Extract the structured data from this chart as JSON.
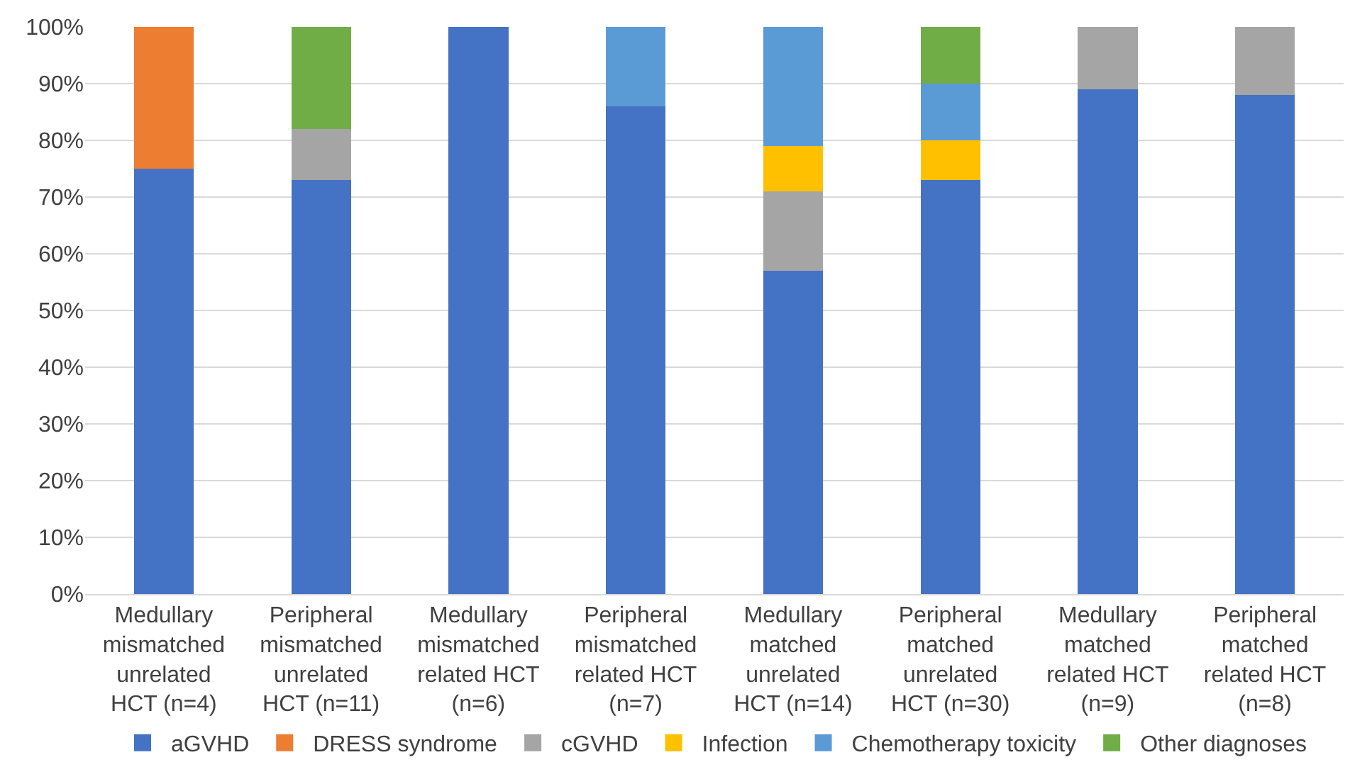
{
  "chart_data": {
    "type": "bar",
    "stacked": true,
    "categories": [
      "Medullary mismatched unrelated HCT (n=4)",
      "Peripheral mismatched unrelated HCT (n=11)",
      "Medullary mismatched related HCT (n=6)",
      "Peripheral mismatched related HCT (n=7)",
      "Medullary matched unrelated HCT (n=14)",
      "Peripheral matched unrelated HCT (n=30)",
      "Medullary matched related HCT (n=9)",
      "Peripheral matched related HCT (n=8)"
    ],
    "series": [
      {
        "name": "aGVHD",
        "color": "#4472c4",
        "values": [
          75,
          73,
          100,
          86,
          57,
          73,
          89,
          88
        ]
      },
      {
        "name": "DRESS syndrome",
        "color": "#ed7d31",
        "values": [
          25,
          null,
          null,
          null,
          null,
          null,
          null,
          null
        ]
      },
      {
        "name": "cGVHD",
        "color": "#a5a5a5",
        "values": [
          null,
          9,
          null,
          null,
          14,
          null,
          11,
          12
        ]
      },
      {
        "name": "Infection",
        "color": "#ffc000",
        "values": [
          null,
          null,
          null,
          null,
          8,
          7,
          null,
          null
        ]
      },
      {
        "name": "Chemotherapy toxicity",
        "color": "#5b9bd5",
        "values": [
          null,
          null,
          null,
          14,
          21,
          10,
          null,
          null
        ]
      },
      {
        "name": "Other diagnoses",
        "color": "#70ad47",
        "values": [
          null,
          18,
          null,
          null,
          null,
          10,
          null,
          null
        ]
      }
    ],
    "ylim": [
      0,
      100
    ],
    "yticks": [
      {
        "value": 0,
        "label": "0%"
      },
      {
        "value": 10,
        "label": "10%"
      },
      {
        "value": 20,
        "label": "20%"
      },
      {
        "value": 30,
        "label": "30%"
      },
      {
        "value": 40,
        "label": "40%"
      },
      {
        "value": 50,
        "label": "50%"
      },
      {
        "value": 60,
        "label": "60%"
      },
      {
        "value": 70,
        "label": "70%"
      },
      {
        "value": 80,
        "label": "80%"
      },
      {
        "value": 90,
        "label": "90%"
      },
      {
        "value": 100,
        "label": "100%"
      }
    ],
    "grid": "y",
    "legend": "bottom"
  }
}
